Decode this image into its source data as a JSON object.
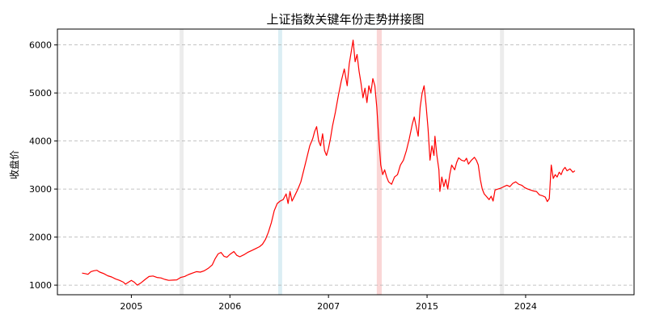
{
  "chart_data": {
    "type": "line",
    "title": "上证指数关键年份走势拼接图",
    "xlabel": "",
    "ylabel": "收盘价",
    "ylim": [
      800,
      6330
    ],
    "y_ticks": [
      1000,
      2000,
      3000,
      4000,
      5000,
      6000
    ],
    "x_range": [
      -0.25,
      5.6
    ],
    "x_ticks": [
      {
        "pos": 0.5,
        "label": "2005"
      },
      {
        "pos": 1.5,
        "label": "2006"
      },
      {
        "pos": 2.5,
        "label": "2007"
      },
      {
        "pos": 3.5,
        "label": "2015"
      },
      {
        "pos": 4.5,
        "label": "2024"
      }
    ],
    "grid": {
      "y": true,
      "style": "dashed"
    },
    "line_color": "#ff0000",
    "highlight_bands": [
      {
        "x0": 0.99,
        "x1": 1.03,
        "color": "#e6e6e6"
      },
      {
        "x0": 1.99,
        "x1": 2.03,
        "color": "#cfe8f0"
      },
      {
        "x0": 2.99,
        "x1": 3.04,
        "color": "#f8c8c8"
      },
      {
        "x0": 4.24,
        "x1": 4.28,
        "color": "#e6e6e6"
      }
    ],
    "series": [
      {
        "values": [
          [
            0.0,
            1250
          ],
          [
            0.03,
            1240
          ],
          [
            0.06,
            1225
          ],
          [
            0.09,
            1280
          ],
          [
            0.12,
            1300
          ],
          [
            0.15,
            1310
          ],
          [
            0.18,
            1270
          ],
          [
            0.22,
            1240
          ],
          [
            0.26,
            1195
          ],
          [
            0.3,
            1170
          ],
          [
            0.34,
            1130
          ],
          [
            0.38,
            1100
          ],
          [
            0.42,
            1060
          ],
          [
            0.44,
            1020
          ],
          [
            0.47,
            1060
          ],
          [
            0.5,
            1100
          ],
          [
            0.53,
            1060
          ],
          [
            0.56,
            1000
          ],
          [
            0.6,
            1050
          ],
          [
            0.64,
            1120
          ],
          [
            0.68,
            1180
          ],
          [
            0.72,
            1190
          ],
          [
            0.76,
            1160
          ],
          [
            0.8,
            1150
          ],
          [
            0.84,
            1120
          ],
          [
            0.88,
            1100
          ],
          [
            0.92,
            1105
          ],
          [
            0.96,
            1110
          ],
          [
            1.0,
            1160
          ],
          [
            1.04,
            1180
          ],
          [
            1.08,
            1220
          ],
          [
            1.12,
            1250
          ],
          [
            1.16,
            1280
          ],
          [
            1.2,
            1270
          ],
          [
            1.24,
            1300
          ],
          [
            1.28,
            1350
          ],
          [
            1.32,
            1420
          ],
          [
            1.35,
            1550
          ],
          [
            1.38,
            1650
          ],
          [
            1.41,
            1680
          ],
          [
            1.44,
            1600
          ],
          [
            1.47,
            1580
          ],
          [
            1.5,
            1640
          ],
          [
            1.54,
            1700
          ],
          [
            1.57,
            1620
          ],
          [
            1.6,
            1590
          ],
          [
            1.64,
            1630
          ],
          [
            1.68,
            1680
          ],
          [
            1.72,
            1720
          ],
          [
            1.76,
            1760
          ],
          [
            1.8,
            1800
          ],
          [
            1.83,
            1850
          ],
          [
            1.86,
            1950
          ],
          [
            1.89,
            2100
          ],
          [
            1.92,
            2300
          ],
          [
            1.95,
            2550
          ],
          [
            1.98,
            2700
          ],
          [
            2.01,
            2750
          ],
          [
            2.04,
            2780
          ],
          [
            2.07,
            2900
          ],
          [
            2.09,
            2700
          ],
          [
            2.11,
            2950
          ],
          [
            2.13,
            2750
          ],
          [
            2.16,
            2870
          ],
          [
            2.19,
            3000
          ],
          [
            2.22,
            3150
          ],
          [
            2.25,
            3400
          ],
          [
            2.28,
            3650
          ],
          [
            2.31,
            3900
          ],
          [
            2.34,
            4050
          ],
          [
            2.36,
            4200
          ],
          [
            2.38,
            4300
          ],
          [
            2.4,
            4000
          ],
          [
            2.42,
            3900
          ],
          [
            2.44,
            4150
          ],
          [
            2.46,
            3800
          ],
          [
            2.48,
            3700
          ],
          [
            2.5,
            3850
          ],
          [
            2.52,
            4050
          ],
          [
            2.54,
            4300
          ],
          [
            2.57,
            4600
          ],
          [
            2.6,
            4950
          ],
          [
            2.63,
            5250
          ],
          [
            2.66,
            5500
          ],
          [
            2.69,
            5150
          ],
          [
            2.71,
            5600
          ],
          [
            2.73,
            5850
          ],
          [
            2.75,
            6100
          ],
          [
            2.77,
            5650
          ],
          [
            2.79,
            5800
          ],
          [
            2.81,
            5450
          ],
          [
            2.83,
            5200
          ],
          [
            2.85,
            4900
          ],
          [
            2.87,
            5100
          ],
          [
            2.89,
            4800
          ],
          [
            2.91,
            5150
          ],
          [
            2.93,
            5000
          ],
          [
            2.95,
            5300
          ],
          [
            2.97,
            5150
          ],
          [
            2.99,
            4700
          ],
          [
            3.01,
            4050
          ],
          [
            3.03,
            3500
          ],
          [
            3.05,
            3300
          ],
          [
            3.07,
            3400
          ],
          [
            3.09,
            3250
          ],
          [
            3.11,
            3150
          ],
          [
            3.14,
            3100
          ],
          [
            3.17,
            3250
          ],
          [
            3.2,
            3300
          ],
          [
            3.23,
            3500
          ],
          [
            3.26,
            3600
          ],
          [
            3.29,
            3800
          ],
          [
            3.32,
            4050
          ],
          [
            3.35,
            4350
          ],
          [
            3.37,
            4500
          ],
          [
            3.39,
            4300
          ],
          [
            3.41,
            4100
          ],
          [
            3.43,
            4700
          ],
          [
            3.45,
            5000
          ],
          [
            3.47,
            5150
          ],
          [
            3.49,
            4750
          ],
          [
            3.51,
            4250
          ],
          [
            3.53,
            3600
          ],
          [
            3.55,
            3900
          ],
          [
            3.57,
            3700
          ],
          [
            3.58,
            4100
          ],
          [
            3.6,
            3700
          ],
          [
            3.62,
            3400
          ],
          [
            3.63,
            2950
          ],
          [
            3.65,
            3250
          ],
          [
            3.67,
            3050
          ],
          [
            3.69,
            3200
          ],
          [
            3.71,
            3000
          ],
          [
            3.73,
            3300
          ],
          [
            3.75,
            3500
          ],
          [
            3.78,
            3400
          ],
          [
            3.8,
            3550
          ],
          [
            3.82,
            3650
          ],
          [
            3.85,
            3600
          ],
          [
            3.88,
            3580
          ],
          [
            3.9,
            3640
          ],
          [
            3.92,
            3520
          ],
          [
            3.95,
            3600
          ],
          [
            3.98,
            3660
          ],
          [
            4.0,
            3600
          ],
          [
            4.02,
            3500
          ],
          [
            4.04,
            3200
          ],
          [
            4.06,
            3000
          ],
          [
            4.08,
            2900
          ],
          [
            4.1,
            2850
          ],
          [
            4.13,
            2780
          ],
          [
            4.15,
            2850
          ],
          [
            4.17,
            2750
          ],
          [
            4.19,
            2980
          ],
          [
            4.22,
            3000
          ],
          [
            4.25,
            3020
          ],
          [
            4.28,
            3050
          ],
          [
            4.31,
            3080
          ],
          [
            4.34,
            3050
          ],
          [
            4.37,
            3120
          ],
          [
            4.4,
            3150
          ],
          [
            4.43,
            3100
          ],
          [
            4.46,
            3080
          ],
          [
            4.49,
            3030
          ],
          [
            4.52,
            3000
          ],
          [
            4.55,
            2980
          ],
          [
            4.58,
            2960
          ],
          [
            4.61,
            2950
          ],
          [
            4.64,
            2880
          ],
          [
            4.67,
            2860
          ],
          [
            4.7,
            2830
          ],
          [
            4.72,
            2740
          ],
          [
            4.74,
            2800
          ],
          [
            4.76,
            3500
          ],
          [
            4.78,
            3220
          ],
          [
            4.8,
            3300
          ],
          [
            4.82,
            3250
          ],
          [
            4.84,
            3350
          ],
          [
            4.86,
            3300
          ],
          [
            4.88,
            3400
          ],
          [
            4.9,
            3450
          ],
          [
            4.92,
            3380
          ],
          [
            4.95,
            3420
          ],
          [
            4.98,
            3350
          ],
          [
            5.0,
            3380
          ]
        ]
      }
    ]
  }
}
